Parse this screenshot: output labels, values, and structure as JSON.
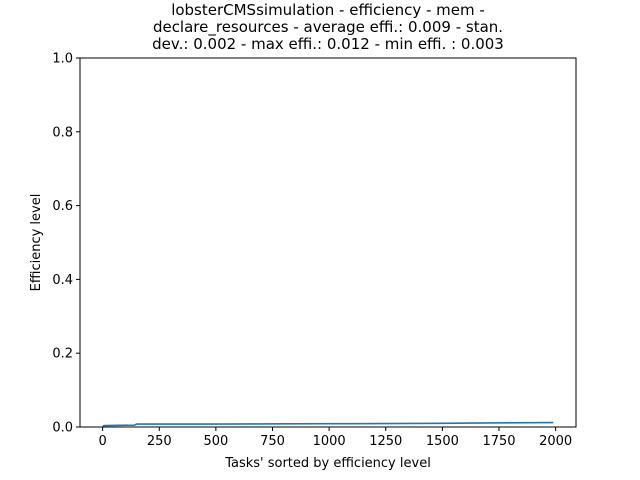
{
  "chart_data": {
    "type": "line",
    "title_lines": [
      "lobsterCMSsimulation - efficiency - mem -",
      "declare_resources - average effi.: 0.009 - stan.",
      "dev.: 0.002 - max effi.: 0.012 - min effi. : 0.003"
    ],
    "xlabel": "Tasks' sorted by efficiency level",
    "ylabel": "Efficiency level",
    "xlim": [
      -100,
      2090
    ],
    "ylim": [
      0,
      1.0
    ],
    "xticks": [
      0,
      250,
      500,
      750,
      1000,
      1250,
      1500,
      1750,
      2000
    ],
    "yticks": [
      0.0,
      0.2,
      0.4,
      0.6,
      0.8,
      1.0
    ],
    "xtick_labels": [
      "0",
      "250",
      "500",
      "750",
      "1000",
      "1250",
      "1500",
      "1750",
      "2000"
    ],
    "ytick_labels": [
      "0.0",
      "0.2",
      "0.4",
      "0.6",
      "0.8",
      "1.0"
    ],
    "grid": false,
    "series": [
      {
        "color": "#1f77b4",
        "x": [
          0,
          10,
          140,
          150,
          500,
          1000,
          1100,
          1500,
          1700,
          1990
        ],
        "y": [
          0.003,
          0.004,
          0.005,
          0.008,
          0.008,
          0.009,
          0.009,
          0.01,
          0.011,
          0.012
        ]
      }
    ]
  }
}
